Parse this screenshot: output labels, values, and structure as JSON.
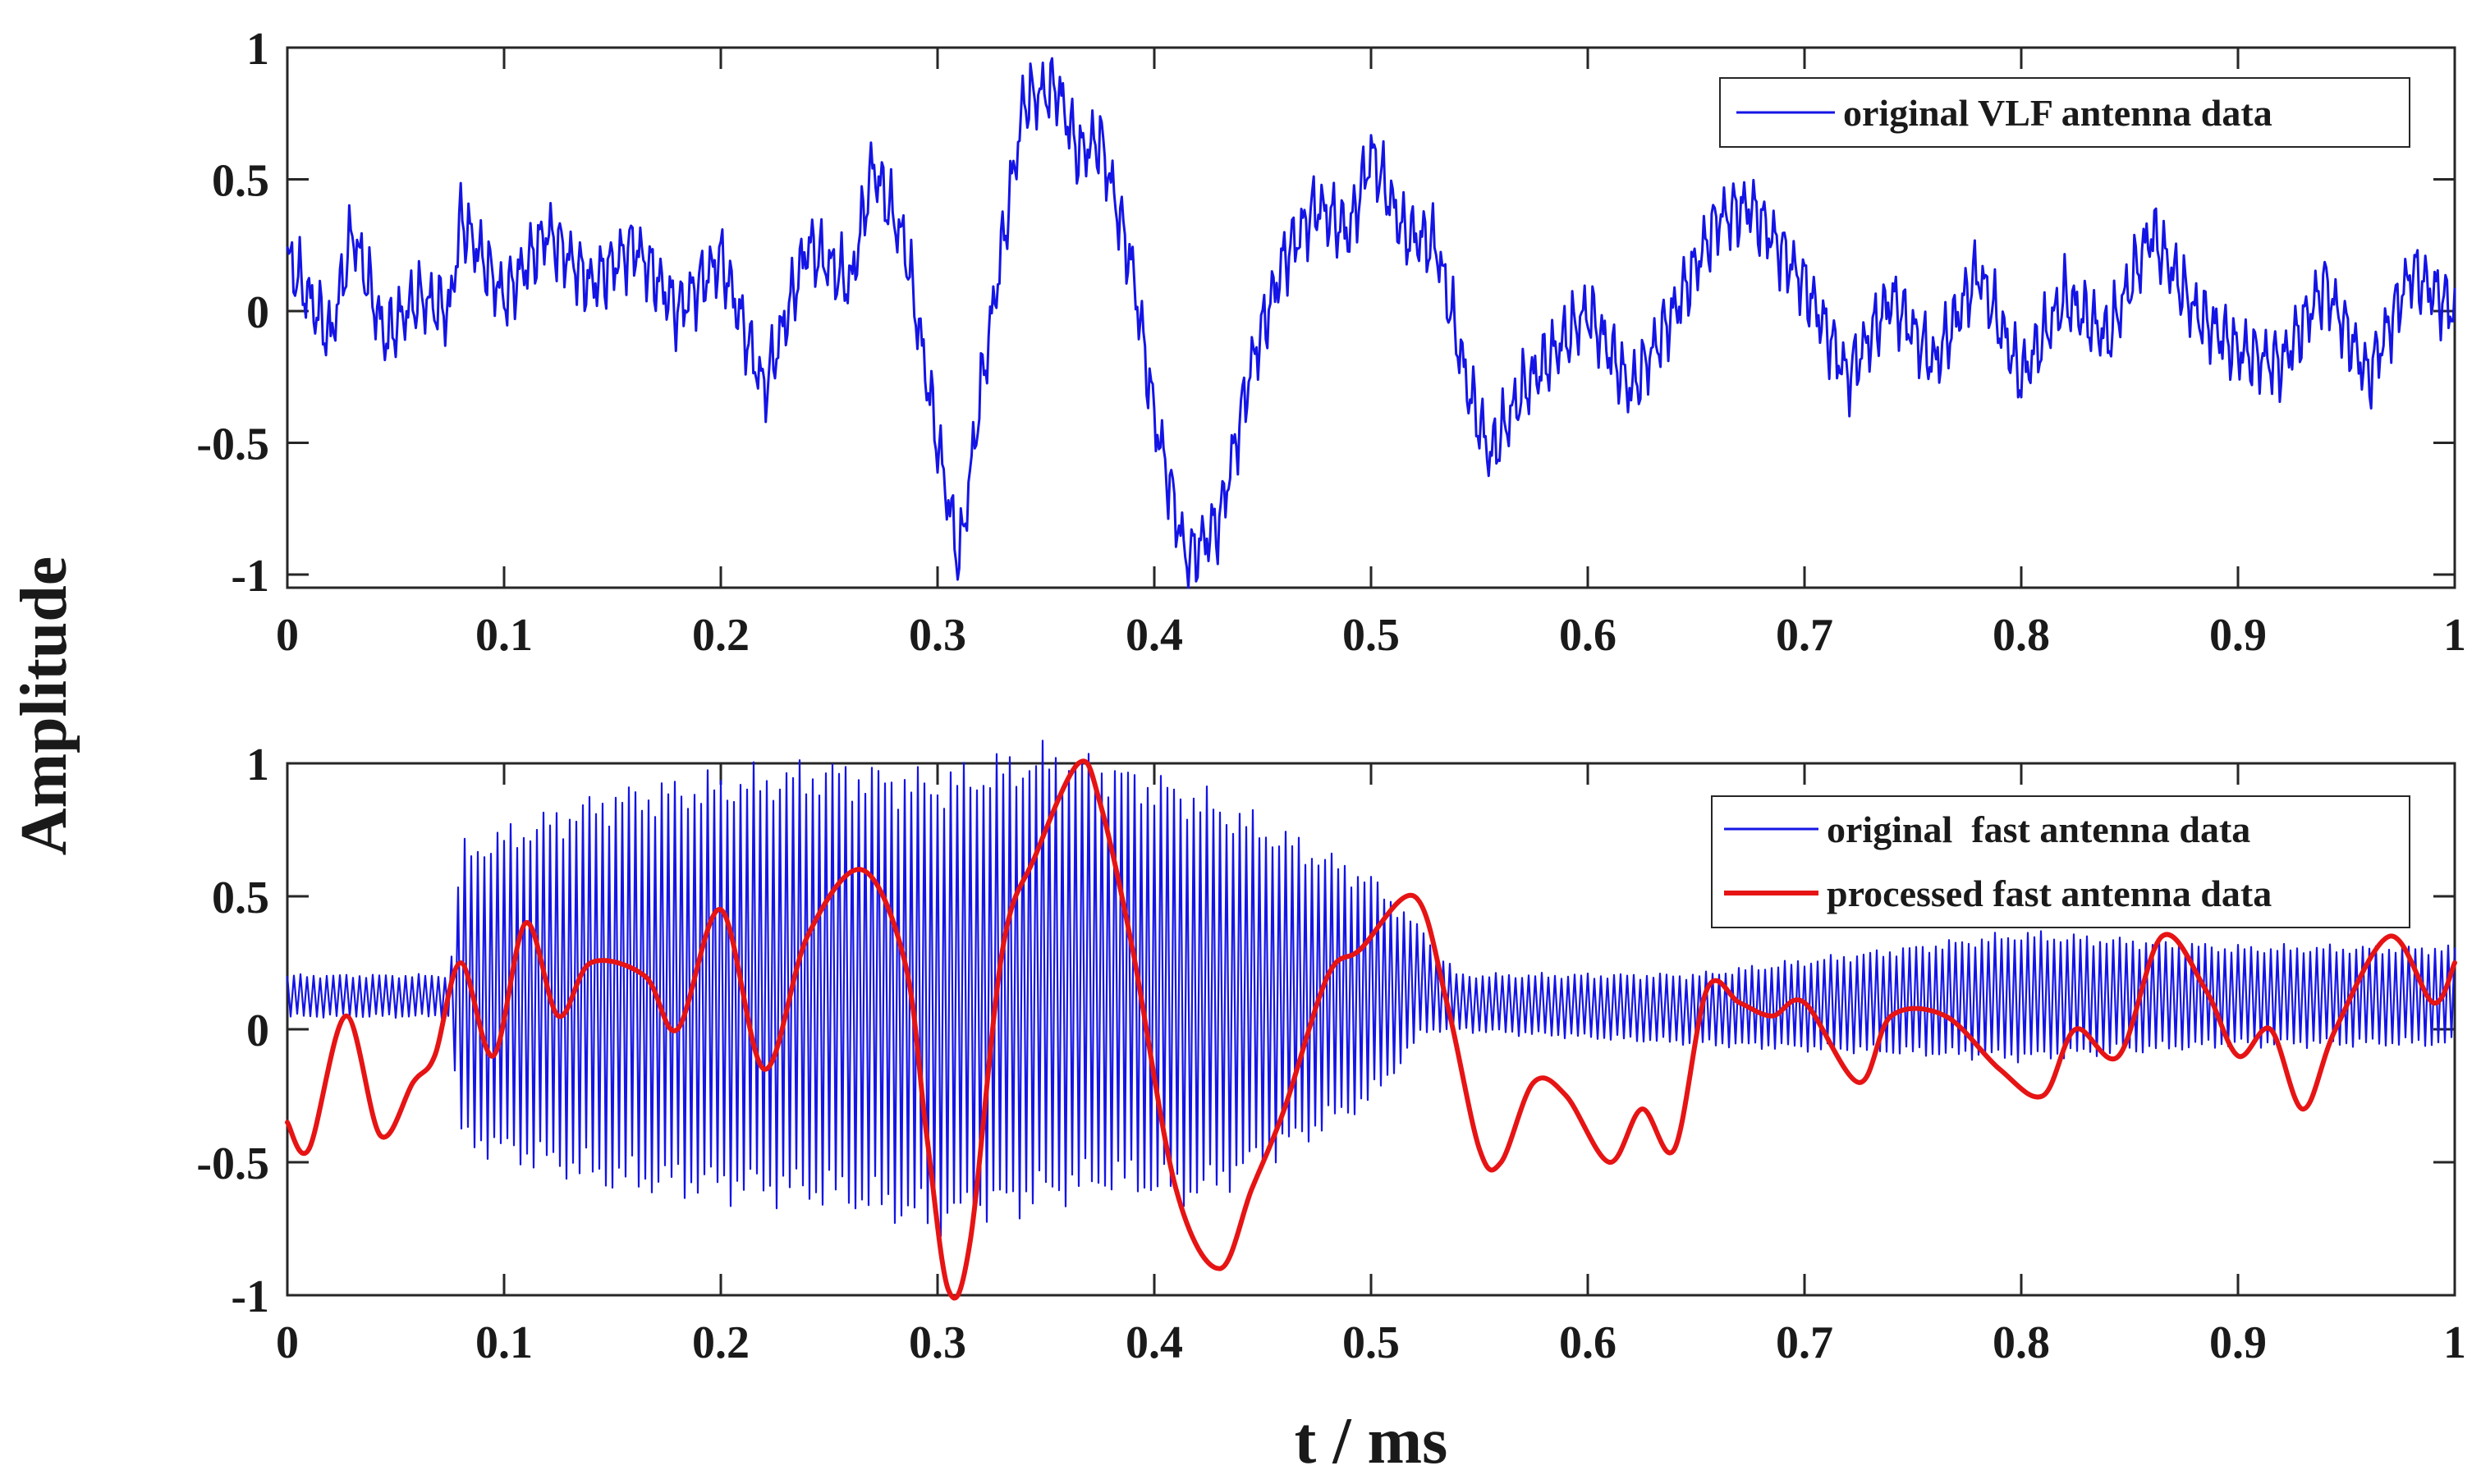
{
  "figure": {
    "ylabel": "Amplitude",
    "xlabel": "t / ms"
  },
  "chart_data": [
    {
      "type": "line",
      "title": "",
      "xlabel": "",
      "ylabel": "Amplitude",
      "xlim": [
        0,
        1
      ],
      "ylim": [
        -1.05,
        1
      ],
      "x_ticks": [
        0,
        0.1,
        0.2,
        0.3,
        0.4,
        0.5,
        0.6,
        0.7,
        0.8,
        0.9,
        1
      ],
      "x_tick_labels": [
        "0",
        "0.1",
        "0.2",
        "0.3",
        "0.4",
        "0.5",
        "0.6",
        "0.7",
        "0.8",
        "0.9",
        "1"
      ],
      "y_ticks": [
        -1,
        -0.5,
        0,
        0.5,
        1
      ],
      "y_tick_labels": [
        "-1",
        "-0.5",
        "0",
        "0.5",
        "1"
      ],
      "grid": false,
      "legend_position": "top-right",
      "series": [
        {
          "name": "original VLF antenna data",
          "color": "#1414e6",
          "x": [
            0,
            0.02,
            0.03,
            0.045,
            0.06,
            0.075,
            0.08,
            0.1,
            0.12,
            0.14,
            0.16,
            0.18,
            0.2,
            0.22,
            0.24,
            0.26,
            0.27,
            0.285,
            0.3,
            0.31,
            0.32,
            0.34,
            0.355,
            0.365,
            0.375,
            0.39,
            0.4,
            0.415,
            0.43,
            0.445,
            0.46,
            0.475,
            0.49,
            0.5,
            0.515,
            0.53,
            0.545,
            0.555,
            0.57,
            0.6,
            0.62,
            0.64,
            0.66,
            0.675,
            0.7,
            0.72,
            0.74,
            0.76,
            0.78,
            0.8,
            0.82,
            0.84,
            0.86,
            0.88,
            0.9,
            0.92,
            0.94,
            0.96,
            0.98,
            1
          ],
          "y": [
            0.2,
            -0.1,
            0.3,
            -0.1,
            0.05,
            0.0,
            0.35,
            0.05,
            0.3,
            0.1,
            0.25,
            0.0,
            0.2,
            -0.3,
            0.25,
            0.1,
            0.55,
            0.25,
            -0.5,
            -0.95,
            -0.3,
            0.8,
            0.85,
            0.6,
            0.65,
            0.15,
            -0.4,
            -0.95,
            -0.8,
            -0.2,
            0.2,
            0.4,
            0.3,
            0.6,
            0.3,
            0.25,
            -0.3,
            -0.55,
            -0.3,
            0.0,
            -0.3,
            0.0,
            0.35,
            0.4,
            0.1,
            -0.25,
            0.05,
            -0.2,
            0.15,
            -0.25,
            0.05,
            -0.1,
            0.3,
            0.0,
            -0.15,
            -0.2,
            0.1,
            -0.25,
            0.15,
            0.0
          ]
        }
      ]
    },
    {
      "type": "line",
      "title": "",
      "xlabel": "t / ms",
      "ylabel": "Amplitude",
      "xlim": [
        0,
        1
      ],
      "ylim": [
        -1,
        1
      ],
      "x_ticks": [
        0,
        0.1,
        0.2,
        0.3,
        0.4,
        0.5,
        0.6,
        0.7,
        0.8,
        0.9,
        1
      ],
      "x_tick_labels": [
        "0",
        "0.1",
        "0.2",
        "0.3",
        "0.4",
        "0.5",
        "0.6",
        "0.7",
        "0.8",
        "0.9",
        "1"
      ],
      "y_ticks": [
        -1,
        -0.5,
        0,
        0.5,
        1
      ],
      "y_tick_labels": [
        "-1",
        "-0.5",
        "0",
        "0.5",
        "1"
      ],
      "grid": false,
      "legend_position": "top-right",
      "series": [
        {
          "name": "original  fast antenna data",
          "color": "#1414e6",
          "envelope": {
            "x": [
              0,
              0.075,
              0.08,
              0.15,
              0.25,
              0.3,
              0.35,
              0.38,
              0.42,
              0.5,
              0.525,
              0.54,
              0.65,
              0.8,
              0.9,
              1
            ],
            "upper": [
              0.2,
              0.2,
              0.65,
              0.85,
              0.95,
              0.9,
              1.0,
              0.95,
              0.85,
              0.55,
              0.35,
              0.2,
              0.2,
              0.35,
              0.3,
              0.3
            ],
            "lower": [
              0.05,
              0.05,
              -0.4,
              -0.55,
              -0.6,
              -0.7,
              -0.6,
              -0.55,
              -0.6,
              -0.25,
              0.0,
              0.0,
              -0.05,
              -0.1,
              -0.05,
              -0.05
            ],
            "oscillation_periods": 330
          }
        },
        {
          "name": "processed fast antenna data",
          "color": "#e61414",
          "x": [
            0,
            0.01,
            0.027,
            0.043,
            0.058,
            0.068,
            0.08,
            0.095,
            0.11,
            0.125,
            0.14,
            0.165,
            0.18,
            0.2,
            0.22,
            0.24,
            0.265,
            0.285,
            0.295,
            0.305,
            0.315,
            0.33,
            0.345,
            0.365,
            0.375,
            0.39,
            0.41,
            0.43,
            0.445,
            0.46,
            0.48,
            0.495,
            0.52,
            0.535,
            0.55,
            0.56,
            0.575,
            0.59,
            0.61,
            0.625,
            0.64,
            0.655,
            0.67,
            0.685,
            0.7,
            0.725,
            0.74,
            0.765,
            0.79,
            0.81,
            0.825,
            0.845,
            0.865,
            0.885,
            0.9,
            0.915,
            0.93,
            0.945,
            0.97,
            0.99,
            1
          ],
          "y": [
            -0.35,
            -0.45,
            0.05,
            -0.4,
            -0.2,
            -0.1,
            0.25,
            -0.1,
            0.4,
            0.05,
            0.25,
            0.2,
            0.0,
            0.45,
            -0.15,
            0.35,
            0.6,
            0.25,
            -0.4,
            -0.98,
            -0.8,
            0.3,
            0.65,
            1.0,
            0.85,
            0.3,
            -0.6,
            -0.9,
            -0.6,
            -0.3,
            0.2,
            0.3,
            0.5,
            0.1,
            -0.45,
            -0.5,
            -0.2,
            -0.25,
            -0.5,
            -0.3,
            -0.45,
            0.15,
            0.1,
            0.05,
            0.1,
            -0.2,
            0.05,
            0.05,
            -0.15,
            -0.25,
            0.0,
            -0.1,
            0.35,
            0.15,
            -0.1,
            0.0,
            -0.3,
            0.0,
            0.35,
            0.1,
            0.25
          ]
        }
      ]
    }
  ]
}
